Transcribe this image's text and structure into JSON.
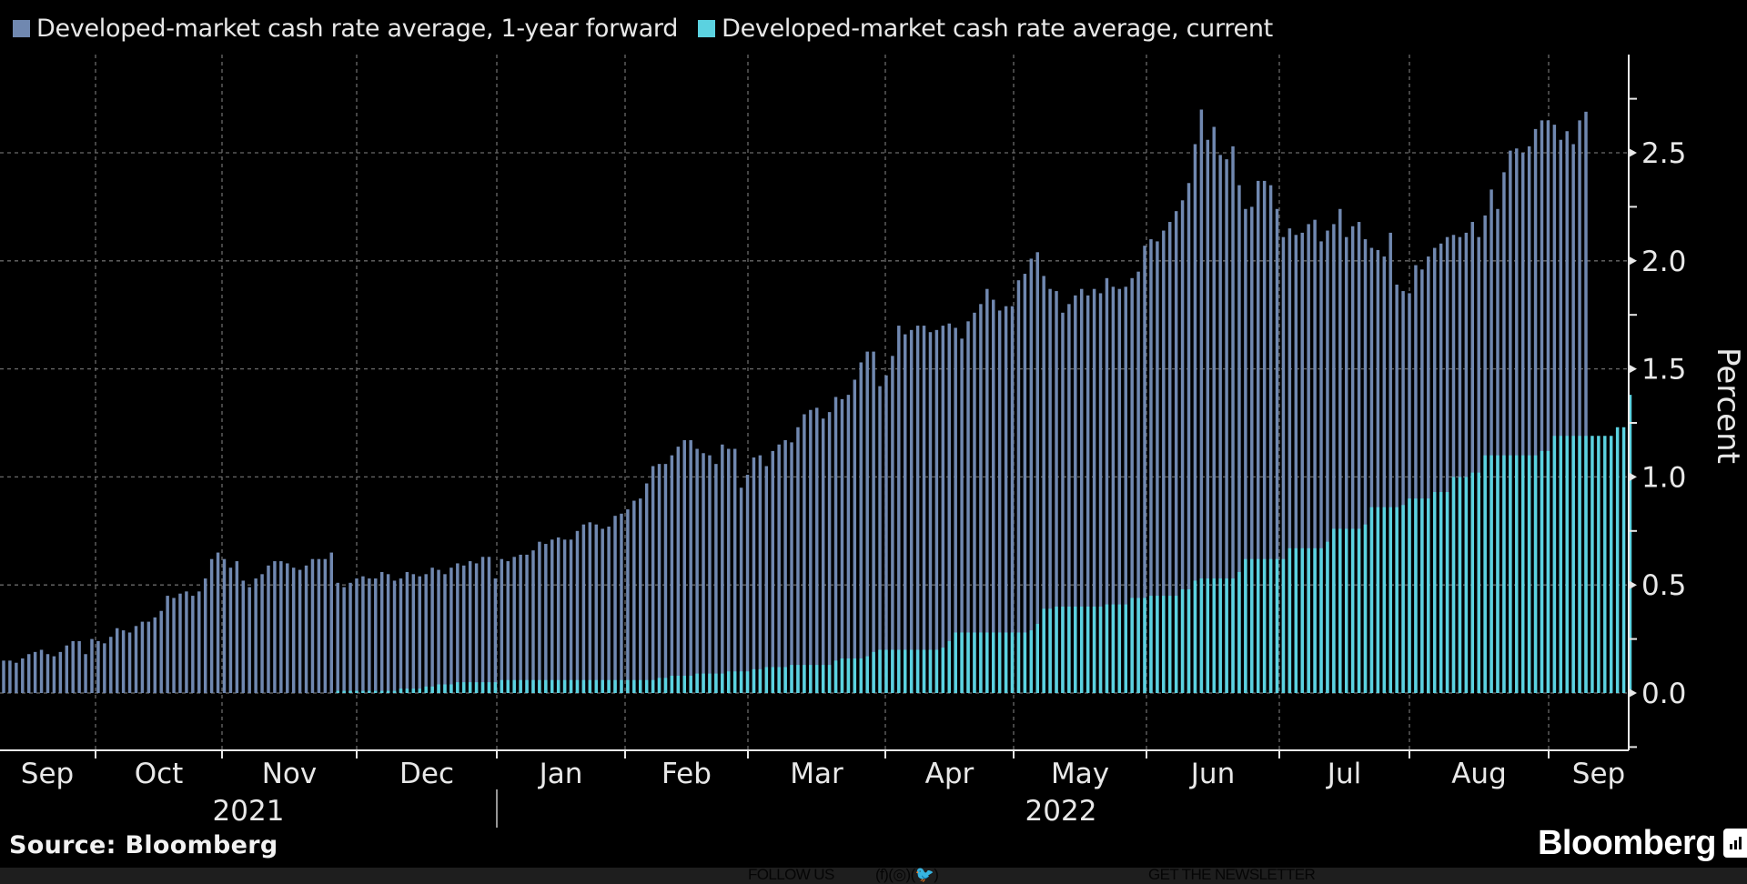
{
  "chart_data": {
    "type": "bar",
    "title": "",
    "ylabel": "Percent",
    "xlabel": "",
    "ylim": [
      -0.27,
      2.95
    ],
    "yticks": [
      "0.0",
      "0.5",
      "1.0",
      "1.5",
      "2.0",
      "2.5"
    ],
    "ytick_values": [
      0,
      0.5,
      1.0,
      1.5,
      2.0,
      2.5
    ],
    "grid": true,
    "legend_position": "top-left",
    "x_month_labels": [
      "Sep",
      "Oct",
      "Nov",
      "Dec",
      "Jan",
      "Feb",
      "Mar",
      "Apr",
      "May",
      "Jun",
      "Jul",
      "Aug",
      "Sep"
    ],
    "x_year_labels": [
      "2021",
      "2022"
    ],
    "series": [
      {
        "name": "Developed-market cash rate average, 1-year forward",
        "color": "#7088b0",
        "values": [
          0.15,
          0.15,
          0.14,
          0.16,
          0.18,
          0.19,
          0.2,
          0.18,
          0.17,
          0.19,
          0.22,
          0.24,
          0.24,
          0.18,
          0.25,
          0.24,
          0.23,
          0.26,
          0.3,
          0.29,
          0.28,
          0.31,
          0.33,
          0.33,
          0.35,
          0.38,
          0.45,
          0.44,
          0.46,
          0.47,
          0.45,
          0.47,
          0.53,
          0.62,
          0.65,
          0.62,
          0.58,
          0.61,
          0.52,
          0.49,
          0.53,
          0.55,
          0.59,
          0.61,
          0.61,
          0.6,
          0.58,
          0.57,
          0.59,
          0.62,
          0.62,
          0.62,
          0.65,
          0.51,
          0.49,
          0.51,
          0.53,
          0.54,
          0.53,
          0.53,
          0.56,
          0.55,
          0.52,
          0.53,
          0.56,
          0.55,
          0.54,
          0.55,
          0.58,
          0.57,
          0.55,
          0.58,
          0.6,
          0.59,
          0.61,
          0.6,
          0.63,
          0.63,
          0.53,
          0.62,
          0.61,
          0.63,
          0.64,
          0.64,
          0.66,
          0.7,
          0.69,
          0.71,
          0.72,
          0.71,
          0.71,
          0.75,
          0.78,
          0.79,
          0.78,
          0.76,
          0.77,
          0.82,
          0.83,
          0.85,
          0.89,
          0.9,
          0.97,
          1.05,
          1.06,
          1.06,
          1.1,
          1.14,
          1.17,
          1.17,
          1.13,
          1.11,
          1.1,
          1.06,
          1.15,
          1.13,
          1.13,
          0.95,
          1.01,
          1.09,
          1.1,
          1.05,
          1.12,
          1.15,
          1.17,
          1.16,
          1.23,
          1.29,
          1.31,
          1.32,
          1.27,
          1.3,
          1.37,
          1.36,
          1.38,
          1.45,
          1.53,
          1.58,
          1.58,
          1.42,
          1.47,
          1.56,
          1.7,
          1.66,
          1.68,
          1.7,
          1.7,
          1.67,
          1.68,
          1.7,
          1.71,
          1.69,
          1.64,
          1.72,
          1.76,
          1.8,
          1.87,
          1.82,
          1.77,
          1.79,
          1.79,
          1.91,
          1.94,
          2.01,
          2.04,
          1.93,
          1.87,
          1.86,
          1.76,
          1.8,
          1.84,
          1.87,
          1.84,
          1.87,
          1.85,
          1.92,
          1.88,
          1.87,
          1.88,
          1.92,
          1.95,
          2.07,
          2.1,
          2.09,
          2.14,
          2.18,
          2.23,
          2.28,
          2.36,
          2.54,
          2.7,
          2.56,
          2.62,
          2.49,
          2.47,
          2.53,
          2.35,
          2.24,
          2.25,
          2.37,
          2.37,
          2.35,
          2.24,
          2.11,
          2.15,
          2.12,
          2.13,
          2.17,
          2.19,
          2.09,
          2.14,
          2.17,
          2.24,
          2.11,
          2.16,
          2.18,
          2.1,
          2.06,
          2.05,
          2.02,
          2.13,
          1.89,
          1.86,
          1.85,
          1.98,
          1.96,
          2.02,
          2.06,
          2.08,
          2.11,
          2.12,
          2.11,
          2.13,
          2.18,
          2.11,
          2.21,
          2.33,
          2.24,
          2.41,
          2.51,
          2.52,
          2.5,
          2.53,
          2.61,
          2.65,
          2.65,
          2.63,
          2.56,
          2.6,
          2.54,
          2.65,
          2.69
        ]
      },
      {
        "name": "Developed-market cash rate average, current",
        "color": "#5bd2e0",
        "values": [
          0.0,
          0.0,
          0.0,
          0.0,
          0.0,
          0.0,
          0.0,
          0.0,
          0.0,
          0.0,
          0.0,
          0.0,
          0.0,
          0.0,
          0.0,
          0.0,
          0.0,
          0.0,
          0.0,
          0.0,
          0.0,
          0.0,
          0.0,
          0.0,
          0.0,
          0.0,
          0.0,
          0.0,
          0.0,
          0.0,
          0.0,
          0.0,
          0.0,
          0.0,
          0.0,
          0.0,
          0.0,
          0.0,
          0.0,
          0.0,
          0.0,
          0.0,
          0.0,
          0.0,
          0.0,
          0.0,
          0.0,
          0.0,
          0.0,
          0.0,
          0.0,
          0.0,
          0.0,
          0.01,
          0.01,
          0.01,
          0.01,
          0.01,
          0.01,
          0.01,
          0.01,
          0.01,
          0.01,
          0.02,
          0.02,
          0.02,
          0.02,
          0.03,
          0.03,
          0.04,
          0.04,
          0.04,
          0.05,
          0.05,
          0.05,
          0.05,
          0.05,
          0.05,
          0.05,
          0.06,
          0.06,
          0.06,
          0.06,
          0.06,
          0.06,
          0.06,
          0.06,
          0.06,
          0.06,
          0.06,
          0.06,
          0.06,
          0.06,
          0.06,
          0.06,
          0.06,
          0.06,
          0.06,
          0.06,
          0.06,
          0.06,
          0.06,
          0.06,
          0.06,
          0.07,
          0.07,
          0.08,
          0.08,
          0.08,
          0.08,
          0.09,
          0.09,
          0.09,
          0.09,
          0.09,
          0.1,
          0.1,
          0.1,
          0.1,
          0.11,
          0.11,
          0.12,
          0.12,
          0.12,
          0.12,
          0.13,
          0.13,
          0.13,
          0.13,
          0.13,
          0.13,
          0.13,
          0.15,
          0.16,
          0.16,
          0.16,
          0.16,
          0.17,
          0.19,
          0.2,
          0.2,
          0.2,
          0.2,
          0.2,
          0.2,
          0.2,
          0.2,
          0.2,
          0.2,
          0.21,
          0.24,
          0.28,
          0.28,
          0.28,
          0.28,
          0.28,
          0.28,
          0.28,
          0.28,
          0.28,
          0.28,
          0.28,
          0.28,
          0.29,
          0.32,
          0.39,
          0.39,
          0.4,
          0.4,
          0.4,
          0.4,
          0.4,
          0.4,
          0.4,
          0.4,
          0.41,
          0.41,
          0.41,
          0.41,
          0.44,
          0.44,
          0.44,
          0.45,
          0.45,
          0.45,
          0.45,
          0.45,
          0.48,
          0.48,
          0.52,
          0.53,
          0.53,
          0.53,
          0.53,
          0.53,
          0.53,
          0.56,
          0.62,
          0.62,
          0.62,
          0.62,
          0.62,
          0.62,
          0.62,
          0.67,
          0.67,
          0.67,
          0.67,
          0.67,
          0.67,
          0.7,
          0.76,
          0.76,
          0.76,
          0.76,
          0.76,
          0.78,
          0.86,
          0.86,
          0.86,
          0.86,
          0.86,
          0.87,
          0.9,
          0.9,
          0.9,
          0.9,
          0.93,
          0.93,
          0.93,
          1.0,
          1.0,
          1.0,
          1.02,
          1.02,
          1.1,
          1.1,
          1.1,
          1.1,
          1.1,
          1.1,
          1.1,
          1.1,
          1.1,
          1.12,
          1.12,
          1.19,
          1.19,
          1.19,
          1.19,
          1.19,
          1.19,
          1.19,
          1.19,
          1.19,
          1.19,
          1.23,
          1.23,
          1.38
        ]
      }
    ]
  },
  "legend": {
    "items": [
      {
        "label": "Developed-market cash rate average, 1-year forward",
        "color": "#7088b0"
      },
      {
        "label": "Developed-market cash rate average, current",
        "color": "#5bd2e0"
      }
    ]
  },
  "source": "Source: Bloomberg",
  "brand": "Bloomberg",
  "footer": {
    "follow": "FOLLOW US",
    "newsletter": "GET THE NEWSLETTER"
  },
  "colors": {
    "background": "#000000",
    "forward": "#7088b0",
    "current": "#5bd2e0",
    "grid": "#6a6a6a",
    "axis": "#e8e8e8"
  }
}
